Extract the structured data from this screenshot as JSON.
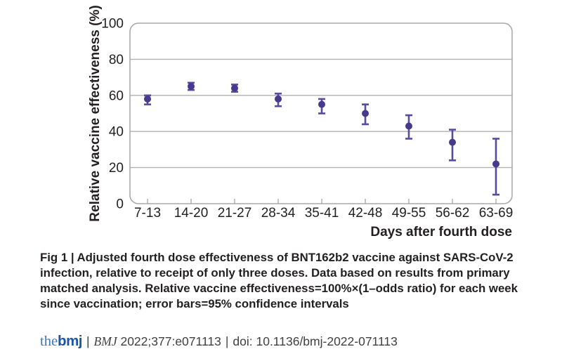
{
  "chart_data": {
    "type": "scatter",
    "subtype": "point-estimates-with-95ci-error-bars",
    "categories": [
      "7-13",
      "14-20",
      "21-27",
      "28-34",
      "35-41",
      "42-48",
      "49-55",
      "56-62",
      "63-69"
    ],
    "values": [
      58,
      65,
      64,
      58,
      55,
      50,
      43,
      34,
      22
    ],
    "ci_low": [
      55,
      63,
      62,
      54,
      50,
      44,
      36,
      24,
      5
    ],
    "ci_high": [
      60,
      67,
      66,
      61,
      58,
      55,
      49,
      41,
      36
    ],
    "xlabel": "Days after fourth dose",
    "ylabel": "Relative vaccine effectiveness (%)",
    "ylim": [
      0,
      100
    ],
    "yticks": [
      0,
      20,
      40,
      60,
      80,
      100
    ],
    "grid": "horizontal",
    "legend": "none",
    "colors": {
      "point": "#47398c",
      "error_bar": "#5a4ba0",
      "grid": "#b1b1b1",
      "frame": "#aaaaaa",
      "text": "#231f20"
    }
  },
  "caption": "Fig 1 | Adjusted fourth dose effectiveness of BNT162b2 vaccine against SARS-CoV-2\ninfection, relative to receipt of only three doses. Data based on results from primary\nmatched analysis. Relative vaccine effectiveness=100%×(1–odds ratio) for each week\nsince vaccination; error bars=95% confidence intervals",
  "footer": {
    "logo_the": "the",
    "logo_bmj": "bmj",
    "sep1": "|",
    "journal": "BMJ",
    "citation": "2022;377:e071113",
    "sep2": "|",
    "doi": "doi: 10.1136/bmj-2022-071113"
  }
}
